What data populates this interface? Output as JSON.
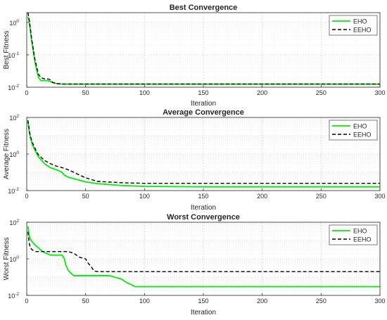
{
  "chart_data": [
    {
      "type": "line",
      "title": "Best Convergence",
      "xlabel": "Iteration",
      "ylabel": "Best Fitness",
      "xlim": [
        0,
        300
      ],
      "ylim": [
        0.01,
        2
      ],
      "yscale": "log",
      "xticks": [
        "0",
        "50",
        "100",
        "150",
        "200",
        "250",
        "300"
      ],
      "yticks": [
        {
          "base": "10",
          "exp": "-2"
        },
        {
          "base": "10",
          "exp": "-1"
        },
        {
          "base": "10",
          "exp": "0"
        }
      ],
      "grid": true,
      "legend_position": "top-right",
      "series": [
        {
          "name": "EHO",
          "color": "#00ee00",
          "style": "solid",
          "x": [
            1,
            2,
            3,
            4,
            5,
            6,
            7,
            8,
            9,
            10,
            12,
            15,
            18,
            20,
            25,
            30,
            50,
            100,
            200,
            300
          ],
          "y": [
            1.5,
            1.1,
            0.6,
            0.3,
            0.18,
            0.1,
            0.06,
            0.04,
            0.028,
            0.02,
            0.016,
            0.016,
            0.016,
            0.015,
            0.013,
            0.0125,
            0.0125,
            0.0125,
            0.0125,
            0.0125
          ]
        },
        {
          "name": "EEHO",
          "color": "#000000",
          "style": "dashed",
          "x": [
            1,
            2,
            3,
            4,
            5,
            6,
            7,
            8,
            9,
            10,
            12,
            15,
            18,
            20,
            22,
            25,
            30,
            50,
            100,
            200,
            300
          ],
          "y": [
            2.0,
            1.3,
            0.7,
            0.35,
            0.2,
            0.12,
            0.07,
            0.05,
            0.035,
            0.025,
            0.02,
            0.018,
            0.018,
            0.017,
            0.014,
            0.013,
            0.0125,
            0.0125,
            0.0125,
            0.0125,
            0.0125
          ]
        }
      ]
    },
    {
      "type": "line",
      "title": "Average Convergence",
      "xlabel": "Iteration",
      "ylabel": "Average Fitness",
      "xlim": [
        0,
        300
      ],
      "ylim": [
        0.01,
        100
      ],
      "yscale": "log",
      "xticks": [
        "0",
        "50",
        "100",
        "150",
        "200",
        "250",
        "300"
      ],
      "yticks": [
        {
          "base": "10",
          "exp": "-2"
        },
        {
          "base": "10",
          "exp": "0"
        },
        {
          "base": "10",
          "exp": "2"
        }
      ],
      "grid": true,
      "legend_position": "top-right",
      "series": [
        {
          "name": "EHO",
          "color": "#00ee00",
          "style": "solid",
          "x": [
            1,
            2,
            3,
            5,
            8,
            10,
            15,
            20,
            25,
            30,
            32,
            35,
            40,
            50,
            60,
            80,
            100,
            150,
            200,
            300
          ],
          "y": [
            60,
            20,
            8,
            3,
            1.2,
            0.7,
            0.3,
            0.18,
            0.14,
            0.1,
            0.07,
            0.055,
            0.045,
            0.03,
            0.024,
            0.019,
            0.017,
            0.016,
            0.016,
            0.016
          ]
        },
        {
          "name": "EEHO",
          "color": "#000000",
          "style": "dashed",
          "x": [
            1,
            2,
            3,
            5,
            8,
            10,
            15,
            20,
            25,
            30,
            35,
            40,
            45,
            50,
            55,
            60,
            80,
            100,
            150,
            200,
            300
          ],
          "y": [
            70,
            25,
            10,
            4,
            1.5,
            0.9,
            0.45,
            0.3,
            0.22,
            0.18,
            0.14,
            0.1,
            0.07,
            0.05,
            0.04,
            0.032,
            0.027,
            0.025,
            0.025,
            0.025,
            0.025
          ]
        }
      ]
    },
    {
      "type": "line",
      "title": "Worst Convergence",
      "xlabel": "Iteration",
      "ylabel": "Worst Fitness",
      "xlim": [
        0,
        300
      ],
      "ylim": [
        0.01,
        100
      ],
      "yscale": "log",
      "xticks": [
        "0",
        "50",
        "100",
        "150",
        "200",
        "250",
        "300"
      ],
      "yticks": [
        {
          "base": "10",
          "exp": "-2"
        },
        {
          "base": "10",
          "exp": "0"
        },
        {
          "base": "10",
          "exp": "2"
        }
      ],
      "grid": true,
      "legend_position": "top-right",
      "series": [
        {
          "name": "EHO",
          "color": "#00ee00",
          "style": "solid",
          "x": [
            1,
            2,
            3,
            5,
            8,
            10,
            12,
            15,
            20,
            25,
            30,
            32,
            33,
            35,
            38,
            40,
            45,
            50,
            60,
            70,
            80,
            85,
            90,
            92,
            300
          ],
          "y": [
            60,
            20,
            12,
            8,
            5,
            4,
            3,
            2.2,
            1.6,
            1.6,
            1.6,
            1.0,
            0.5,
            0.25,
            0.15,
            0.12,
            0.12,
            0.12,
            0.12,
            0.12,
            0.08,
            0.05,
            0.035,
            0.03,
            0.03
          ]
        },
        {
          "name": "EEHO",
          "color": "#000000",
          "style": "dashed",
          "x": [
            1,
            2,
            3,
            5,
            8,
            10,
            15,
            20,
            25,
            30,
            35,
            40,
            45,
            50,
            52,
            55,
            57,
            60,
            100,
            200,
            300
          ],
          "y": [
            30,
            8,
            4,
            3,
            2.5,
            2.5,
            2.5,
            2.5,
            2.5,
            2.5,
            2.5,
            2.0,
            1.2,
            1.0,
            0.6,
            0.35,
            0.22,
            0.2,
            0.2,
            0.2,
            0.2
          ]
        }
      ]
    }
  ]
}
